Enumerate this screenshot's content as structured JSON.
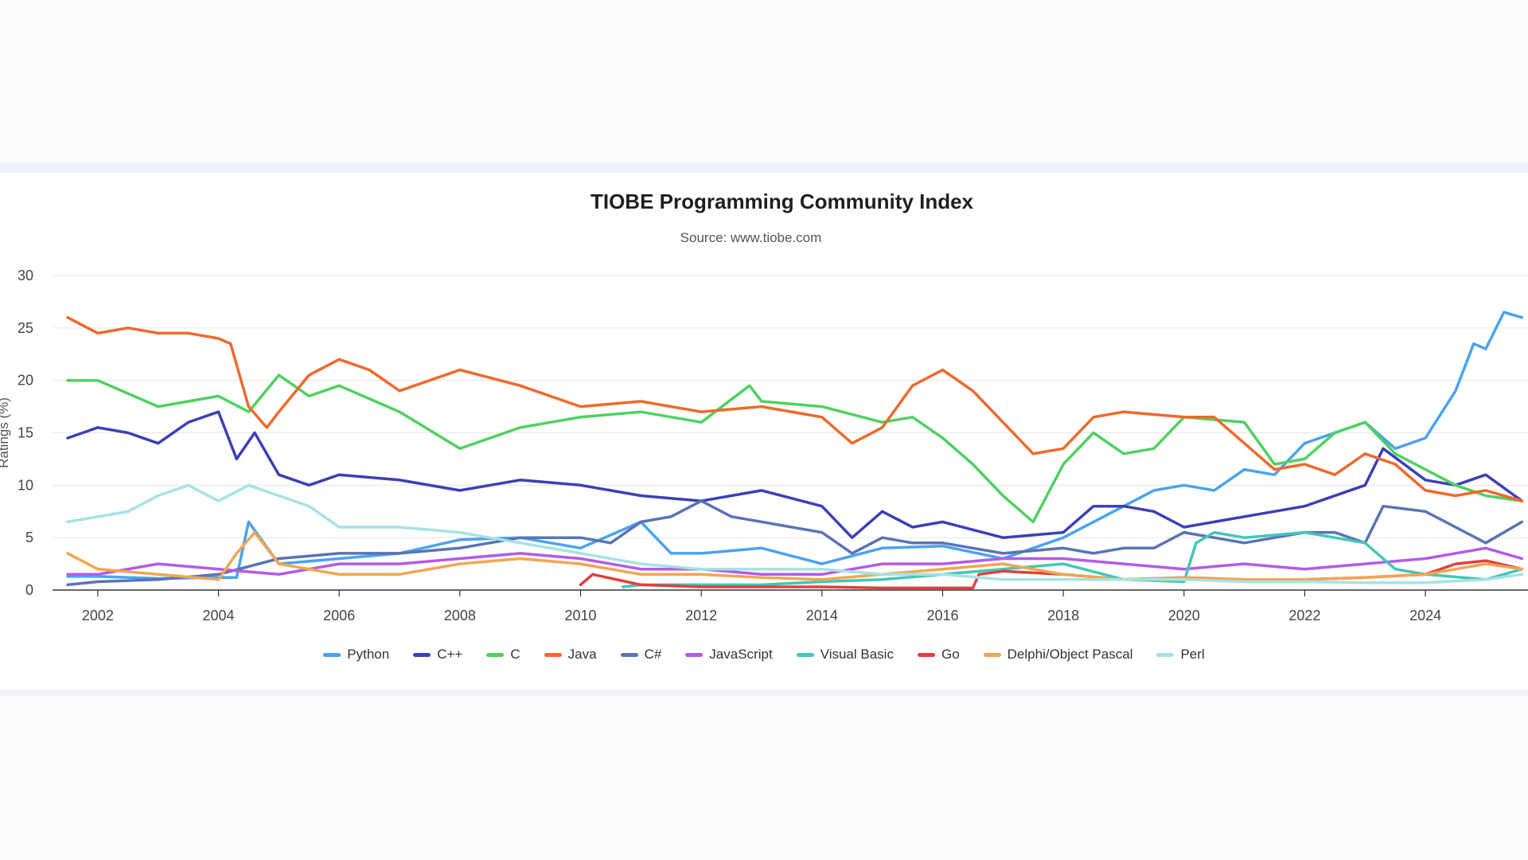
{
  "chart_data": {
    "type": "line",
    "title": "TIOBE Programming Community Index",
    "subtitle": "Source: www.tiobe.com",
    "xlabel": "",
    "ylabel": "Ratings (%)",
    "xlim": [
      2001.25,
      2025.7
    ],
    "ylim": [
      0,
      30
    ],
    "grid": true,
    "legend_position": "bottom",
    "x_ticks": [
      "2002",
      "2004",
      "2006",
      "2008",
      "2010",
      "2012",
      "2014",
      "2016",
      "2018",
      "2020",
      "2022",
      "2024"
    ],
    "y_ticks": [
      "0",
      "5",
      "10",
      "15",
      "20",
      "25",
      "30"
    ],
    "series": [
      {
        "name": "Python",
        "color": "#4aa3f0",
        "x": [
          2001.5,
          2002,
          2003,
          2004,
          2004.3,
          2004.5,
          2005,
          2006,
          2007,
          2008,
          2009,
          2010,
          2011,
          2011.5,
          2012,
          2013,
          2014,
          2015,
          2016,
          2017,
          2018,
          2019,
          2019.5,
          2020,
          2020.5,
          2021,
          2021.5,
          2022,
          2022.5,
          2023,
          2023.5,
          2024,
          2024.5,
          2024.8,
          2025,
          2025.3,
          2025.6
        ],
        "y": [
          1.3,
          1.3,
          1.1,
          1.2,
          1.2,
          6.5,
          2.5,
          3.0,
          3.5,
          4.8,
          5.0,
          4.0,
          6.5,
          3.5,
          3.5,
          4.0,
          2.5,
          4.0,
          4.2,
          3.0,
          5.0,
          8.0,
          9.5,
          10.0,
          9.5,
          11.5,
          11.0,
          14.0,
          15.0,
          16.0,
          13.5,
          14.5,
          19.0,
          23.5,
          23.0,
          26.5,
          26.0
        ]
      },
      {
        "name": "C++",
        "color": "#3d40b5",
        "x": [
          2001.5,
          2002,
          2002.5,
          2003,
          2003.5,
          2004,
          2004.3,
          2004.6,
          2005,
          2005.5,
          2006,
          2007,
          2008,
          2009,
          2010,
          2011,
          2012,
          2013,
          2014,
          2014.5,
          2015,
          2015.5,
          2016,
          2017,
          2018,
          2018.5,
          2019,
          2019.5,
          2020,
          2021,
          2022,
          2023,
          2023.3,
          2024,
          2024.5,
          2025,
          2025.6
        ],
        "y": [
          14.5,
          15.5,
          15.0,
          14.0,
          16.0,
          17.0,
          12.5,
          15.0,
          11.0,
          10.0,
          11.0,
          10.5,
          9.5,
          10.5,
          10.0,
          9.0,
          8.5,
          9.5,
          8.0,
          5.0,
          7.5,
          6.0,
          6.5,
          5.0,
          5.5,
          8.0,
          8.0,
          7.5,
          6.0,
          7.0,
          8.0,
          10.0,
          13.5,
          10.5,
          10.0,
          11.0,
          8.5
        ]
      },
      {
        "name": "C",
        "color": "#4fd160",
        "x": [
          2001.5,
          2002,
          2003,
          2004,
          2004.5,
          2005,
          2005.5,
          2006,
          2007,
          2008,
          2009,
          2010,
          2011,
          2012,
          2012.8,
          2013,
          2014,
          2015,
          2015.5,
          2016,
          2016.5,
          2017,
          2017.5,
          2018,
          2018.5,
          2019,
          2019.5,
          2020,
          2021,
          2021.5,
          2022,
          2022.5,
          2023,
          2023.5,
          2024,
          2024.5,
          2025,
          2025.6
        ],
        "y": [
          20.0,
          20.0,
          17.5,
          18.5,
          17.0,
          20.5,
          18.5,
          19.5,
          17.0,
          13.5,
          15.5,
          16.5,
          17.0,
          16.0,
          19.5,
          18.0,
          17.5,
          16.0,
          16.5,
          14.5,
          12.0,
          9.0,
          6.5,
          12.0,
          15.0,
          13.0,
          13.5,
          16.5,
          16.0,
          12.0,
          12.5,
          15.0,
          16.0,
          13.0,
          11.5,
          10.0,
          9.0,
          8.5
        ]
      },
      {
        "name": "Java",
        "color": "#ee6a2c",
        "x": [
          2001.5,
          2002,
          2002.5,
          2003,
          2003.5,
          2004,
          2004.2,
          2004.5,
          2004.8,
          2005,
          2005.5,
          2006,
          2006.5,
          2007,
          2007.5,
          2008,
          2009,
          2010,
          2011,
          2012,
          2013,
          2014,
          2014.5,
          2015,
          2015.5,
          2016,
          2016.5,
          2017,
          2017.5,
          2018,
          2018.5,
          2019,
          2020,
          2020.5,
          2021,
          2021.5,
          2022,
          2022.5,
          2023,
          2023.5,
          2024,
          2024.5,
          2025,
          2025.6
        ],
        "y": [
          26.0,
          24.5,
          25.0,
          24.5,
          24.5,
          24.0,
          23.5,
          17.5,
          15.5,
          17.0,
          20.5,
          22.0,
          21.0,
          19.0,
          20.0,
          21.0,
          19.5,
          17.5,
          18.0,
          17.0,
          17.5,
          16.5,
          14.0,
          15.5,
          19.5,
          21.0,
          19.0,
          16.0,
          13.0,
          13.5,
          16.5,
          17.0,
          16.5,
          16.5,
          14.0,
          11.5,
          12.0,
          11.0,
          13.0,
          12.0,
          9.5,
          9.0,
          9.5,
          8.5
        ]
      },
      {
        "name": "C#",
        "color": "#5a73b5",
        "x": [
          2001.5,
          2002,
          2003,
          2004,
          2005,
          2006,
          2007,
          2008,
          2009,
          2010,
          2010.5,
          2011,
          2011.5,
          2012,
          2012.5,
          2013,
          2014,
          2014.5,
          2015,
          2015.5,
          2016,
          2017,
          2018,
          2018.5,
          2019,
          2019.5,
          2020,
          2021,
          2021.5,
          2022,
          2022.5,
          2023,
          2023.3,
          2024,
          2024.5,
          2025,
          2025.6
        ],
        "y": [
          0.5,
          0.8,
          1.0,
          1.5,
          3.0,
          3.5,
          3.5,
          4.0,
          5.0,
          5.0,
          4.5,
          6.5,
          7.0,
          8.5,
          7.0,
          6.5,
          5.5,
          3.5,
          5.0,
          4.5,
          4.5,
          3.5,
          4.0,
          3.5,
          4.0,
          4.0,
          5.5,
          4.5,
          5.0,
          5.5,
          5.5,
          4.5,
          8.0,
          7.5,
          6.0,
          4.5,
          6.5
        ]
      },
      {
        "name": "JavaScript",
        "color": "#b55ae8",
        "x": [
          2001.5,
          2002,
          2003,
          2004,
          2005,
          2006,
          2007,
          2008,
          2009,
          2010,
          2011,
          2012,
          2013,
          2014,
          2015,
          2016,
          2017,
          2018,
          2019,
          2020,
          2021,
          2022,
          2023,
          2024,
          2025,
          2025.6
        ],
        "y": [
          1.5,
          1.5,
          2.5,
          2.0,
          1.5,
          2.5,
          2.5,
          3.0,
          3.5,
          3.0,
          2.0,
          2.0,
          1.5,
          1.5,
          2.5,
          2.5,
          3.0,
          3.0,
          2.5,
          2.0,
          2.5,
          2.0,
          2.5,
          3.0,
          4.0,
          3.0
        ]
      },
      {
        "name": "Visual Basic",
        "color": "#43c7b6",
        "x": [
          2010.7,
          2011,
          2012,
          2013,
          2014,
          2015,
          2016,
          2017,
          2018,
          2019,
          2020,
          2020.2,
          2020.5,
          2021,
          2022,
          2023,
          2023.5,
          2024,
          2025,
          2025.6
        ],
        "y": [
          0.3,
          0.5,
          0.5,
          0.5,
          0.8,
          1.0,
          1.5,
          2.0,
          2.5,
          1.0,
          0.8,
          4.5,
          5.5,
          5.0,
          5.5,
          4.5,
          2.0,
          1.5,
          1.0,
          2.0
        ]
      },
      {
        "name": "Go",
        "color": "#e0403c",
        "x": [
          2010,
          2010.2,
          2011,
          2012,
          2013,
          2014,
          2015,
          2016,
          2016.5,
          2016.6,
          2017,
          2018,
          2019,
          2020,
          2021,
          2022,
          2023,
          2024,
          2024.5,
          2025,
          2025.6
        ],
        "y": [
          0.5,
          1.5,
          0.5,
          0.3,
          0.3,
          0.3,
          0.2,
          0.2,
          0.2,
          1.5,
          1.8,
          1.5,
          1.0,
          1.2,
          1.0,
          1.0,
          1.2,
          1.5,
          2.5,
          2.8,
          2.0
        ]
      },
      {
        "name": "Delphi/Object Pascal",
        "color": "#f2a552",
        "x": [
          2001.5,
          2002,
          2003,
          2004,
          2004.3,
          2004.6,
          2005,
          2006,
          2007,
          2008,
          2009,
          2010,
          2011,
          2012,
          2013,
          2014,
          2015,
          2016,
          2017,
          2018,
          2019,
          2020,
          2021,
          2022,
          2023,
          2024,
          2025,
          2025.6
        ],
        "y": [
          3.5,
          2.0,
          1.5,
          1.0,
          3.5,
          5.5,
          2.5,
          1.5,
          1.5,
          2.5,
          3.0,
          2.5,
          1.5,
          1.5,
          1.2,
          1.0,
          1.5,
          2.0,
          2.5,
          1.5,
          1.0,
          1.2,
          1.0,
          1.0,
          1.2,
          1.5,
          2.5,
          2.0
        ]
      },
      {
        "name": "Perl",
        "color": "#a5e3e3",
        "x": [
          2001.5,
          2002,
          2002.5,
          2003,
          2003.5,
          2004,
          2004.5,
          2005,
          2005.5,
          2006,
          2007,
          2008,
          2009,
          2010,
          2011,
          2012,
          2013,
          2014,
          2015,
          2016,
          2017,
          2018,
          2019,
          2020,
          2021,
          2022,
          2023,
          2024,
          2025,
          2025.6
        ],
        "y": [
          6.5,
          7.0,
          7.5,
          9.0,
          10.0,
          8.5,
          10.0,
          9.0,
          8.0,
          6.0,
          6.0,
          5.5,
          4.5,
          3.5,
          2.5,
          2.0,
          2.0,
          2.0,
          1.5,
          1.5,
          1.0,
          1.0,
          1.0,
          1.0,
          0.8,
          0.8,
          0.7,
          0.7,
          1.0,
          1.5
        ]
      }
    ]
  }
}
